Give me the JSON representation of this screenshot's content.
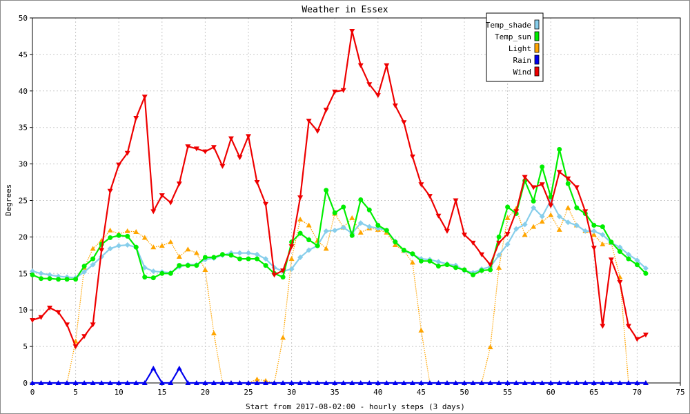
{
  "chart_data": {
    "type": "line",
    "title": "Weather in Essex",
    "xlabel": "Start from 2017-08-02:00 - hourly steps (3 days)",
    "ylabel": "Degrees",
    "xlim": [
      0,
      75
    ],
    "ylim": [
      0,
      50
    ],
    "xticks": [
      0,
      5,
      10,
      15,
      20,
      25,
      30,
      35,
      40,
      45,
      50,
      55,
      60,
      65,
      70,
      75
    ],
    "yticks": [
      0,
      5,
      10,
      15,
      20,
      25,
      30,
      35,
      40,
      45,
      50
    ],
    "grid": true,
    "legend_position": "top-right",
    "series": [
      {
        "name": "Temp_shade",
        "color": "#87ceeb",
        "marker": "diamond",
        "dashed": false,
        "values": [
          15.3,
          15.0,
          14.8,
          14.6,
          14.5,
          14.4,
          15.2,
          16.2,
          17.3,
          18.4,
          18.8,
          18.9,
          18.6,
          15.8,
          15.3,
          15.2,
          15.1,
          15.9,
          16.2,
          16.2,
          16.9,
          17.1,
          17.5,
          17.8,
          17.8,
          17.8,
          17.6,
          17.0,
          15.8,
          15.3,
          15.6,
          17.2,
          18.2,
          18.8,
          20.8,
          20.9,
          21.3,
          20.5,
          21.9,
          21.4,
          21.2,
          20.9,
          19.4,
          18.1,
          17.6,
          17.0,
          16.9,
          16.6,
          16.3,
          16.1,
          15.4,
          15.1,
          15.6,
          15.9,
          17.5,
          19.0,
          21.1,
          21.7,
          24.0,
          22.8,
          25.0,
          22.8,
          22.0,
          21.6,
          20.8,
          20.8,
          20.3,
          19.2,
          18.6,
          17.6,
          16.8,
          15.7
        ]
      },
      {
        "name": "Temp_sun",
        "color": "#00ee00",
        "marker": "circle",
        "dashed": false,
        "values": [
          14.8,
          14.3,
          14.3,
          14.2,
          14.2,
          14.2,
          16.0,
          17.0,
          19.0,
          19.9,
          20.2,
          20.1,
          18.6,
          14.5,
          14.4,
          15.0,
          15.0,
          16.1,
          16.1,
          16.1,
          17.2,
          17.2,
          17.6,
          17.5,
          17.0,
          17.0,
          17.0,
          16.1,
          15.0,
          14.5,
          19.3,
          20.5,
          19.6,
          18.8,
          26.4,
          23.3,
          24.1,
          20.2,
          25.1,
          23.7,
          21.6,
          20.9,
          19.3,
          18.2,
          17.7,
          16.7,
          16.7,
          16.0,
          16.2,
          15.8,
          15.5,
          14.8,
          15.4,
          15.5,
          20.0,
          24.1,
          23.2,
          27.7,
          24.9,
          29.6,
          25.5,
          32.0,
          27.3,
          24.0,
          23.2,
          21.6,
          21.4,
          19.3,
          18.0,
          17.0,
          16.2,
          15.0
        ]
      },
      {
        "name": "Light",
        "color": "#ffa500",
        "marker": "triangle-up",
        "dashed": true,
        "values": [
          0,
          0,
          0,
          0,
          0,
          5.7,
          15.8,
          18.4,
          19.5,
          20.9,
          20.4,
          20.8,
          20.7,
          19.9,
          18.6,
          18.8,
          19.3,
          17.3,
          18.3,
          17.8,
          15.5,
          6.8,
          0,
          0,
          0,
          0,
          0.5,
          0.3,
          0,
          6.2,
          17.0,
          22.4,
          21.6,
          19.5,
          18.4,
          23.2,
          21.3,
          22.6,
          20.6,
          21.2,
          21.0,
          20.6,
          18.9,
          18.1,
          16.5,
          7.2,
          0,
          0,
          0,
          0,
          0,
          0,
          0,
          4.9,
          15.8,
          22.6,
          23.9,
          20.3,
          21.4,
          22.1,
          23.0,
          21.0,
          24.0,
          21.6,
          20.8,
          20.3,
          19.0,
          19.2,
          14.5,
          0,
          0,
          0
        ]
      },
      {
        "name": "Rain",
        "color": "#0000ee",
        "marker": "triangle-up",
        "dashed": false,
        "values": [
          0,
          0,
          0,
          0,
          0,
          0,
          0,
          0,
          0,
          0,
          0,
          0,
          0,
          0,
          2.0,
          0,
          0,
          2.0,
          0,
          0,
          0,
          0,
          0,
          0,
          0,
          0,
          0,
          0,
          0,
          0,
          0,
          0,
          0,
          0,
          0,
          0,
          0,
          0,
          0,
          0,
          0,
          0,
          0,
          0,
          0,
          0,
          0,
          0,
          0,
          0,
          0,
          0,
          0,
          0,
          0,
          0,
          0,
          0,
          0,
          0,
          0,
          0,
          0,
          0,
          0,
          0,
          0,
          0,
          0,
          0,
          0,
          0
        ]
      },
      {
        "name": "Wind",
        "color": "#ee0000",
        "marker": "triangle-down",
        "dashed": false,
        "values": [
          8.6,
          9.0,
          10.3,
          9.7,
          8.0,
          5.0,
          6.4,
          8.0,
          18.2,
          26.3,
          29.9,
          31.5,
          36.3,
          39.2,
          23.5,
          25.7,
          24.7,
          27.3,
          32.4,
          32.1,
          31.7,
          32.3,
          29.7,
          33.5,
          30.9,
          33.8,
          27.5,
          24.5,
          14.8,
          15.4,
          18.7,
          25.4,
          35.9,
          34.5,
          37.4,
          39.9,
          40.1,
          48.2,
          43.5,
          40.9,
          39.4,
          43.5,
          38.0,
          35.7,
          31.0,
          27.2,
          25.6,
          22.9,
          20.8,
          25.0,
          20.3,
          19.2,
          17.6,
          16.2,
          19.2,
          20.4,
          23.5,
          28.2,
          26.8,
          27.2,
          24.3,
          28.9,
          28.0,
          26.8,
          23.5,
          18.5,
          7.8,
          16.9,
          13.8,
          7.8,
          6.0,
          6.6
        ]
      }
    ]
  }
}
